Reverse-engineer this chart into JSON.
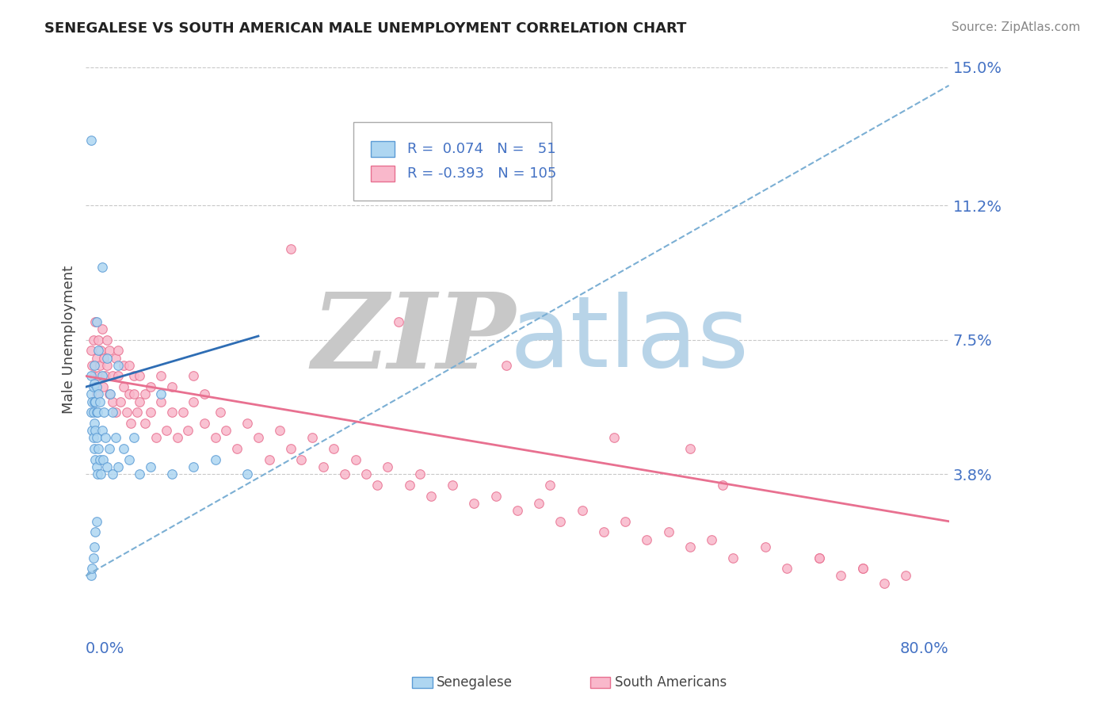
{
  "title": "SENEGALESE VS SOUTH AMERICAN MALE UNEMPLOYMENT CORRELATION CHART",
  "source_text": "Source: ZipAtlas.com",
  "ylabel": "Male Unemployment",
  "xlim": [
    0.0,
    0.8
  ],
  "ylim": [
    0.0,
    0.15
  ],
  "yticks": [
    0.038,
    0.075,
    0.112,
    0.15
  ],
  "ytick_labels": [
    "3.8%",
    "7.5%",
    "11.2%",
    "15.0%"
  ],
  "xticks": [
    0.0,
    0.8
  ],
  "xtick_labels": [
    "0.0%",
    "80.0%"
  ],
  "background_color": "#ffffff",
  "grid_color": "#c8c8c8",
  "senegalese_color": "#aed6f1",
  "senegalese_edge_color": "#5b9bd5",
  "south_american_color": "#f9b8cb",
  "south_american_edge_color": "#e87090",
  "senegalese_solid_color": "#2e6db4",
  "senegalese_dashed_color": "#7bafd4",
  "south_american_trend_color": "#e87090",
  "label_color": "#4472c4",
  "legend_R_senegalese": "0.074",
  "legend_N_senegalese": "51",
  "legend_R_south_american": "-0.393",
  "legend_N_south_american": "105",
  "zip_color": "#c8c8c8",
  "atlas_color": "#b8d4e8",
  "senegalese_x": [
    0.005,
    0.005,
    0.005,
    0.006,
    0.006,
    0.007,
    0.007,
    0.007,
    0.008,
    0.008,
    0.008,
    0.008,
    0.009,
    0.009,
    0.009,
    0.01,
    0.01,
    0.01,
    0.01,
    0.011,
    0.011,
    0.012,
    0.012,
    0.013,
    0.013,
    0.014,
    0.015,
    0.015,
    0.016,
    0.017,
    0.018,
    0.02,
    0.02,
    0.022,
    0.023,
    0.025,
    0.025,
    0.028,
    0.03,
    0.03,
    0.035,
    0.04,
    0.045,
    0.05,
    0.06,
    0.07,
    0.08,
    0.1,
    0.12,
    0.15,
    0.005
  ],
  "senegalese_y": [
    0.055,
    0.06,
    0.065,
    0.05,
    0.058,
    0.048,
    0.055,
    0.062,
    0.045,
    0.052,
    0.058,
    0.063,
    0.042,
    0.05,
    0.058,
    0.04,
    0.048,
    0.055,
    0.062,
    0.038,
    0.055,
    0.045,
    0.06,
    0.042,
    0.058,
    0.038,
    0.05,
    0.065,
    0.042,
    0.055,
    0.048,
    0.04,
    0.07,
    0.045,
    0.06,
    0.038,
    0.055,
    0.048,
    0.04,
    0.068,
    0.045,
    0.042,
    0.048,
    0.038,
    0.04,
    0.06,
    0.038,
    0.04,
    0.042,
    0.038,
    0.13
  ],
  "senegalese_y_outliers": [
    0.095,
    0.08,
    0.072,
    0.068,
    0.01,
    0.012,
    0.015,
    0.018,
    0.022,
    0.025
  ],
  "senegalese_x_outliers": [
    0.015,
    0.01,
    0.012,
    0.008,
    0.005,
    0.006,
    0.007,
    0.008,
    0.009,
    0.01
  ],
  "south_american_x": [
    0.005,
    0.006,
    0.007,
    0.008,
    0.009,
    0.01,
    0.01,
    0.012,
    0.012,
    0.013,
    0.014,
    0.015,
    0.016,
    0.017,
    0.018,
    0.02,
    0.02,
    0.022,
    0.022,
    0.025,
    0.025,
    0.028,
    0.028,
    0.03,
    0.03,
    0.032,
    0.035,
    0.035,
    0.038,
    0.04,
    0.04,
    0.042,
    0.045,
    0.045,
    0.048,
    0.05,
    0.05,
    0.055,
    0.055,
    0.06,
    0.06,
    0.065,
    0.07,
    0.07,
    0.075,
    0.08,
    0.08,
    0.085,
    0.09,
    0.095,
    0.1,
    0.1,
    0.11,
    0.11,
    0.12,
    0.125,
    0.13,
    0.14,
    0.15,
    0.16,
    0.17,
    0.18,
    0.19,
    0.2,
    0.21,
    0.22,
    0.23,
    0.24,
    0.25,
    0.26,
    0.27,
    0.28,
    0.3,
    0.31,
    0.32,
    0.34,
    0.36,
    0.38,
    0.4,
    0.42,
    0.44,
    0.46,
    0.48,
    0.5,
    0.52,
    0.54,
    0.56,
    0.58,
    0.6,
    0.63,
    0.65,
    0.68,
    0.7,
    0.72,
    0.74,
    0.76,
    0.19,
    0.29,
    0.39,
    0.49,
    0.59,
    0.68,
    0.72,
    0.56,
    0.43
  ],
  "south_american_y": [
    0.072,
    0.068,
    0.075,
    0.065,
    0.08,
    0.07,
    0.06,
    0.065,
    0.075,
    0.068,
    0.072,
    0.078,
    0.062,
    0.07,
    0.065,
    0.068,
    0.075,
    0.06,
    0.072,
    0.065,
    0.058,
    0.07,
    0.055,
    0.065,
    0.072,
    0.058,
    0.062,
    0.068,
    0.055,
    0.06,
    0.068,
    0.052,
    0.06,
    0.065,
    0.055,
    0.058,
    0.065,
    0.052,
    0.06,
    0.055,
    0.062,
    0.048,
    0.058,
    0.065,
    0.05,
    0.055,
    0.062,
    0.048,
    0.055,
    0.05,
    0.058,
    0.065,
    0.052,
    0.06,
    0.048,
    0.055,
    0.05,
    0.045,
    0.052,
    0.048,
    0.042,
    0.05,
    0.045,
    0.042,
    0.048,
    0.04,
    0.045,
    0.038,
    0.042,
    0.038,
    0.035,
    0.04,
    0.035,
    0.038,
    0.032,
    0.035,
    0.03,
    0.032,
    0.028,
    0.03,
    0.025,
    0.028,
    0.022,
    0.025,
    0.02,
    0.022,
    0.018,
    0.02,
    0.015,
    0.018,
    0.012,
    0.015,
    0.01,
    0.012,
    0.008,
    0.01,
    0.1,
    0.08,
    0.068,
    0.048,
    0.035,
    0.015,
    0.012,
    0.045,
    0.035
  ]
}
